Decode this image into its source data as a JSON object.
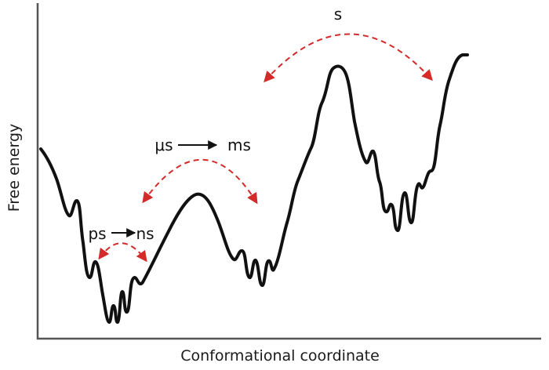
{
  "axes": {
    "y_label": "Free energy",
    "x_label": "Conformational coordinate"
  },
  "timescales": {
    "ps": "ps",
    "ns": "ns",
    "us": "μs",
    "ms": "ms",
    "s": "s"
  },
  "colors": {
    "curve": "#111111",
    "axes": "#555555",
    "transition_arrows": "#d42a2a",
    "label_arrows": "#111111"
  }
}
